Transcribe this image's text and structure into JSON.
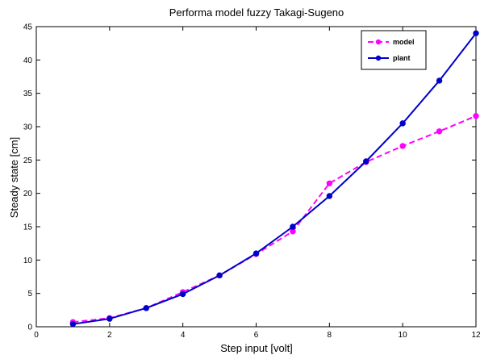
{
  "chart_data": {
    "type": "line",
    "title": "Performa model fuzzy Takagi-Sugeno",
    "xlabel": "Step input [volt]",
    "ylabel": "Steady state [cm]",
    "xlim": [
      0,
      12
    ],
    "ylim": [
      0,
      45
    ],
    "xticks": [
      0,
      2,
      4,
      6,
      8,
      10,
      12
    ],
    "yticks": [
      0,
      5,
      10,
      15,
      20,
      25,
      30,
      35,
      40,
      45
    ],
    "grid": false,
    "legend_position": "top-right",
    "x": [
      1,
      2,
      3,
      4,
      5,
      6,
      7,
      8,
      9,
      10,
      11,
      12
    ],
    "series": [
      {
        "name": "model",
        "color": "#ff00ff",
        "line_style": "dashed",
        "values": [
          0.7,
          1.3,
          2.8,
          5.2,
          7.7,
          10.9,
          14.3,
          21.5,
          24.7,
          27.1,
          29.3,
          31.6
        ]
      },
      {
        "name": "plant",
        "color": "#0000cc",
        "line_style": "solid",
        "values": [
          0.4,
          1.2,
          2.8,
          4.9,
          7.7,
          11.0,
          15.0,
          19.6,
          24.8,
          30.5,
          36.9,
          44.0
        ]
      }
    ]
  }
}
